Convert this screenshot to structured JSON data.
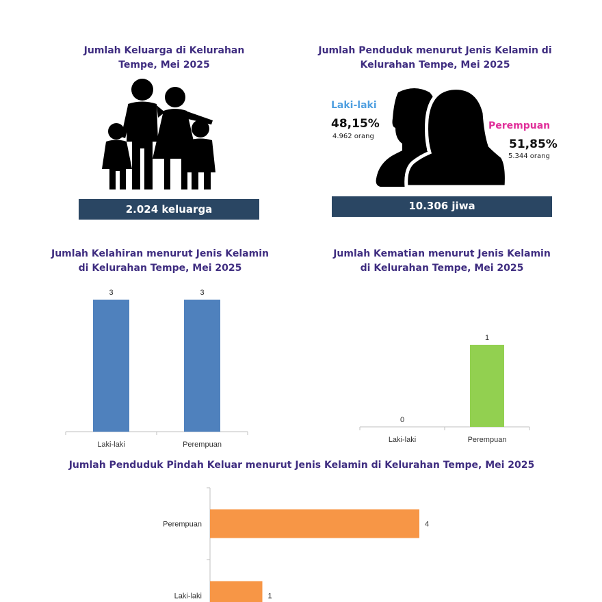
{
  "colors": {
    "title": "#3f2d80",
    "banner": "#2a4663",
    "male": "#4f9fe0",
    "female": "#e0309a",
    "bar_blue": "#4f81bd",
    "bar_green": "#92d050",
    "bar_orange": "#f79646"
  },
  "families": {
    "title": "Jumlah Keluarga di Kelurahan Tempe, Mei 2025",
    "icon": "family-icon",
    "banner": "2.024 keluarga"
  },
  "population": {
    "title": "Jumlah Penduduk menurut Jenis Kelamin di Kelurahan Tempe, Mei 2025",
    "icon": "man-woman-silhouette-icon",
    "male_label": "Laki-laki",
    "male_pct": "48,15%",
    "male_count": "4.962 orang",
    "female_label": "Perempuan",
    "female_pct": "51,85%",
    "female_count": "5.344 orang",
    "banner": "10.306 jiwa"
  },
  "chart_data": [
    {
      "type": "bar",
      "title": "Jumlah Kelahiran menurut Jenis Kelamin di Kelurahan Tempe, Mei 2025",
      "categories": [
        "Laki-laki",
        "Perempuan"
      ],
      "values": [
        3,
        3
      ],
      "ylim": [
        0,
        3
      ],
      "grid": false
    },
    {
      "type": "bar",
      "title": "Jumlah Kematian menurut Jenis Kelamin di Kelurahan Tempe, Mei 2025",
      "categories": [
        "Laki-laki",
        "Perempuan"
      ],
      "values": [
        0,
        1
      ],
      "ylim": [
        0,
        1
      ],
      "grid": false
    },
    {
      "type": "bar",
      "orientation": "horizontal",
      "title": "Jumlah Penduduk Pindah Keluar menurut Jenis Kelamin di Kelurahan Tempe, Mei 2025",
      "categories": [
        "Perempuan",
        "Laki-laki"
      ],
      "values": [
        4,
        1
      ],
      "xlim": [
        0,
        4
      ],
      "grid": false
    }
  ]
}
